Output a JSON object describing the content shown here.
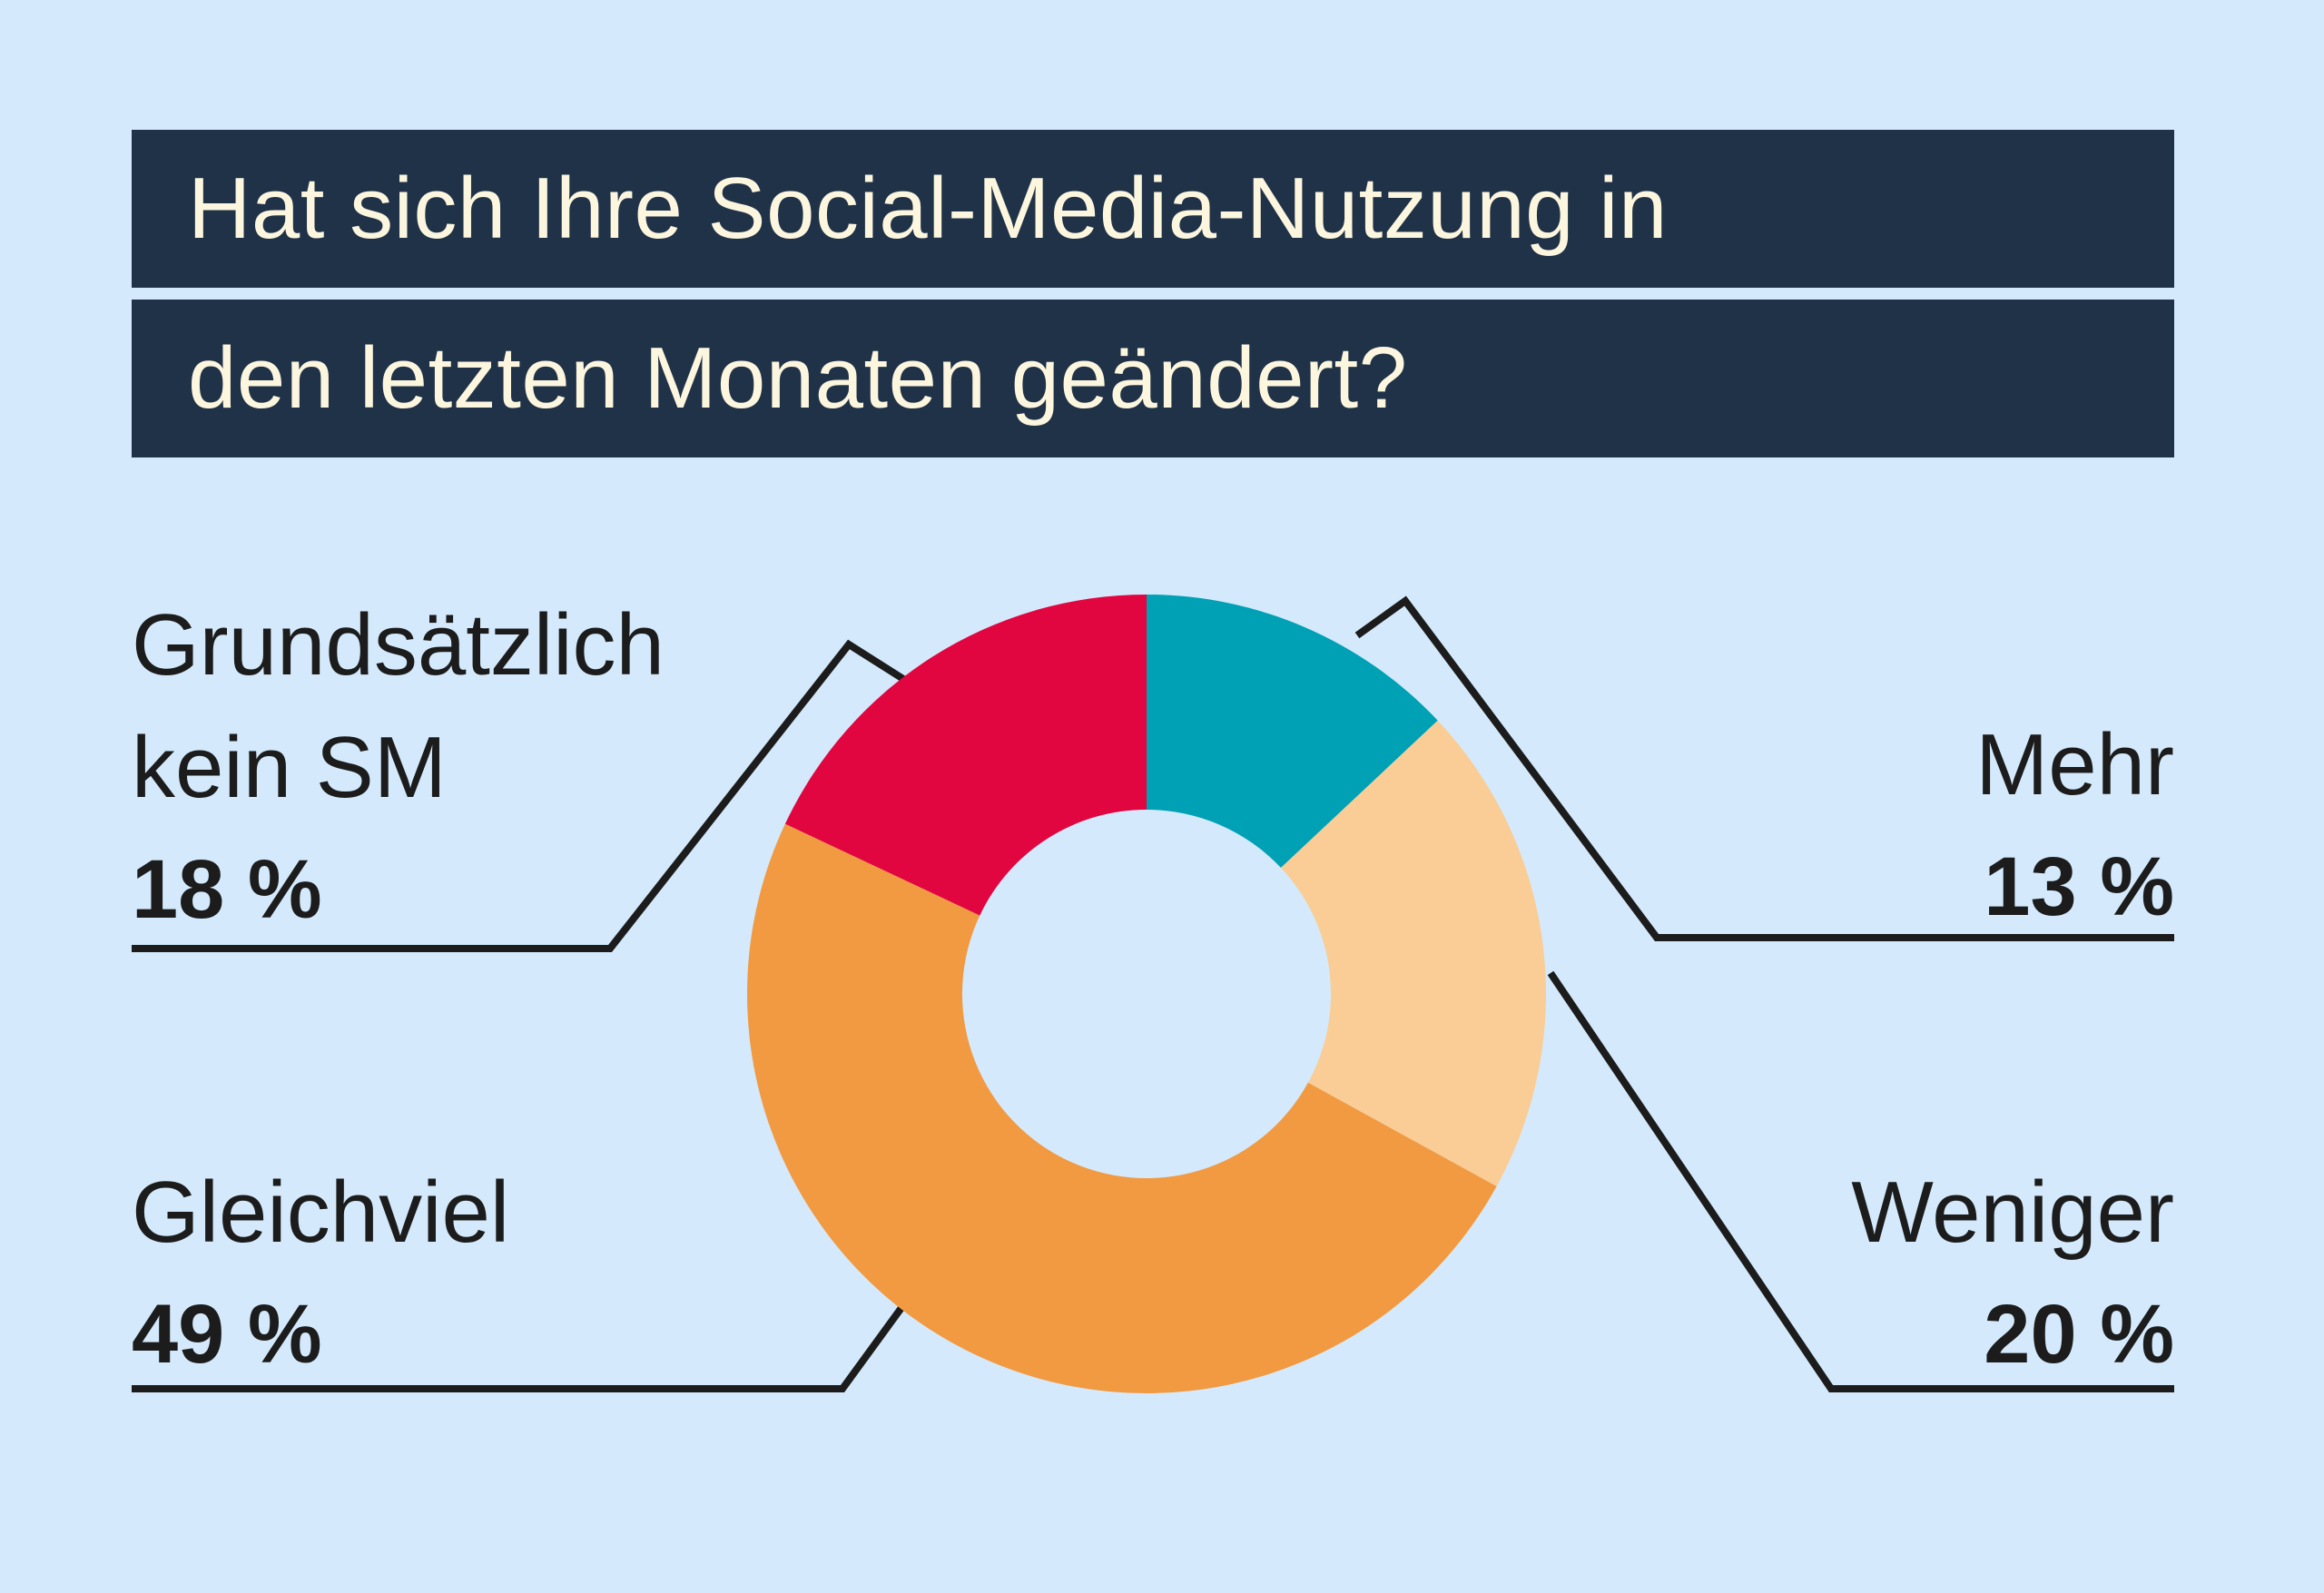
{
  "title": {
    "line1": "Hat sich Ihre Social-Media-Nutzung in",
    "line2": "den letzten Monaten geändert?"
  },
  "chart_data": {
    "type": "pie",
    "donut": true,
    "title": "Hat sich Ihre Social-Media-Nutzung in den letzten Monaten geändert?",
    "slices": [
      {
        "label": "Mehr",
        "value": 13,
        "value_label": "13 %",
        "color": "#00a0b5"
      },
      {
        "label": "Weniger",
        "value": 20,
        "value_label": "20 %",
        "color": "#f9cd95"
      },
      {
        "label": "Gleichviel",
        "value": 49,
        "value_label": "49 %",
        "color": "#f19a42"
      },
      {
        "label": "Grundsätzlich kein SM",
        "value": 18,
        "value_label": "18 %",
        "color": "#e1063f"
      }
    ],
    "legend": "none"
  },
  "labels": {
    "kein_sm": {
      "line1": "Grundsätzlich",
      "line2": "kein SM",
      "pct": "18 %"
    },
    "mehr": {
      "line1": "Mehr",
      "pct": "13 %"
    },
    "gleichviel": {
      "line1": "Gleichviel",
      "pct": "49 %"
    },
    "weniger": {
      "line1": "Weniger",
      "pct": "20 %"
    }
  },
  "colors": {
    "background": "#d4eafc",
    "title_bar": "#203248",
    "title_text": "#fdf6df",
    "leader_line": "#1c1c1c"
  }
}
